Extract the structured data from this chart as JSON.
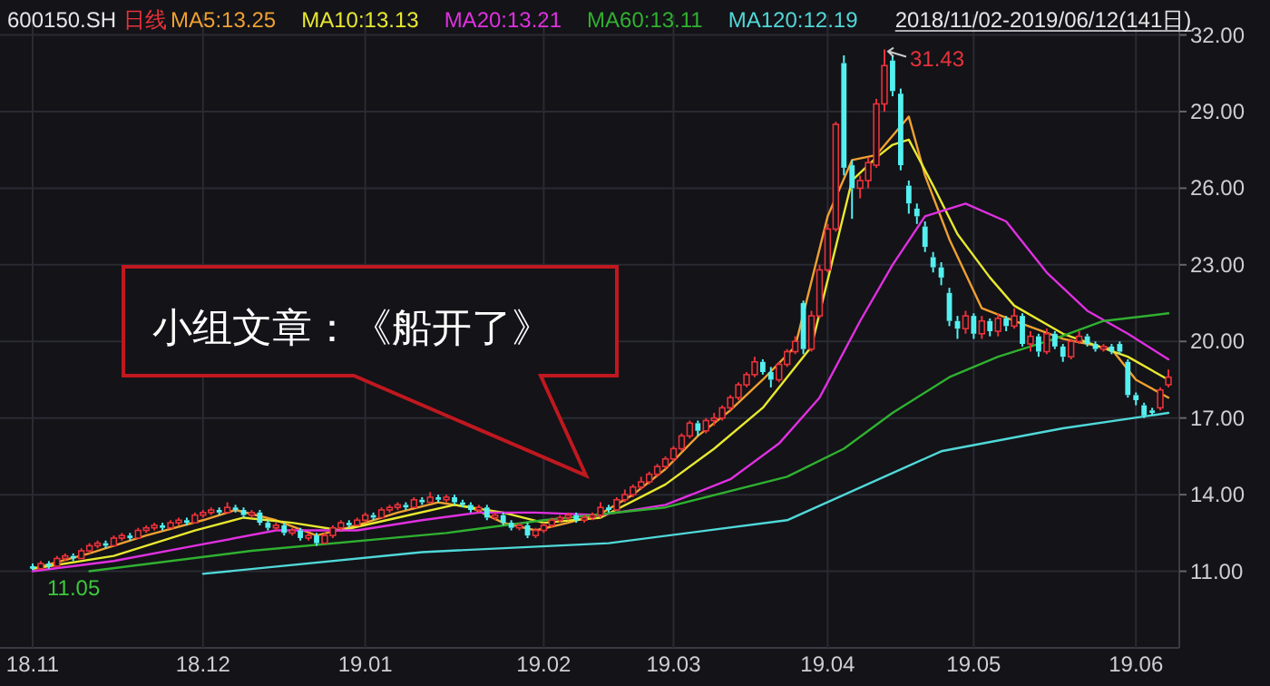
{
  "chart_data": {
    "type": "candlestick",
    "title": "600150.SH",
    "subtitle": "2018/11/02-2019/06/12(141日)",
    "legend": "top",
    "grid": true,
    "categories": [
      "18.11",
      null,
      null,
      null,
      null,
      null,
      null,
      null,
      null,
      null,
      null,
      null,
      null,
      null,
      null,
      null,
      null,
      null,
      null,
      null,
      null,
      "18.12",
      null,
      null,
      null,
      null,
      null,
      null,
      null,
      null,
      null,
      null,
      null,
      null,
      null,
      null,
      null,
      null,
      null,
      null,
      null,
      "19.01",
      null,
      null,
      null,
      null,
      null,
      null,
      null,
      null,
      null,
      null,
      null,
      null,
      null,
      null,
      null,
      null,
      null,
      null,
      null,
      null,
      null,
      "19.02",
      null,
      null,
      null,
      null,
      null,
      null,
      null,
      null,
      null,
      null,
      null,
      null,
      null,
      null,
      null,
      "19.03",
      null,
      null,
      null,
      null,
      null,
      null,
      null,
      null,
      null,
      null,
      null,
      null,
      null,
      null,
      null,
      null,
      null,
      null,
      "19.04",
      null,
      null,
      null,
      null,
      null,
      null,
      null,
      null,
      null,
      null,
      null,
      null,
      null,
      null,
      null,
      null,
      null,
      "19.05",
      null,
      null,
      null,
      null,
      null,
      null,
      null,
      null,
      null,
      null,
      null,
      null,
      null,
      null,
      null,
      null,
      null,
      null,
      null,
      "19.06",
      null,
      null,
      null,
      null
    ],
    "ylim": [
      8.0,
      32.8
    ],
    "yticks": [
      {
        "value": 11,
        "label": "11.00"
      },
      {
        "value": 14,
        "label": "14.00"
      },
      {
        "value": 17,
        "label": "17.00"
      },
      {
        "value": 20,
        "label": "20.00"
      },
      {
        "value": 23,
        "label": "23.00"
      },
      {
        "value": 26,
        "label": "26.00"
      },
      {
        "value": 29,
        "label": "29.00"
      },
      {
        "value": 32,
        "label": "32.00"
      }
    ],
    "ohlc": [
      [
        11.2,
        11.3,
        11.05,
        11.1
      ],
      [
        11.1,
        11.4,
        11.1,
        11.3
      ],
      [
        11.3,
        11.4,
        11.1,
        11.2
      ],
      [
        11.2,
        11.6,
        11.2,
        11.5
      ],
      [
        11.5,
        11.7,
        11.4,
        11.6
      ],
      [
        11.6,
        11.7,
        11.4,
        11.5
      ],
      [
        11.5,
        11.9,
        11.5,
        11.8
      ],
      [
        11.8,
        12.1,
        11.7,
        12.0
      ],
      [
        12.0,
        12.2,
        11.9,
        12.1
      ],
      [
        12.1,
        12.2,
        11.9,
        12.0
      ],
      [
        12.0,
        12.4,
        12.0,
        12.3
      ],
      [
        12.3,
        12.5,
        12.2,
        12.4
      ],
      [
        12.4,
        12.5,
        12.2,
        12.3
      ],
      [
        12.3,
        12.7,
        12.3,
        12.6
      ],
      [
        12.6,
        12.8,
        12.5,
        12.7
      ],
      [
        12.7,
        12.9,
        12.6,
        12.8
      ],
      [
        12.8,
        12.9,
        12.6,
        12.7
      ],
      [
        12.7,
        13.0,
        12.7,
        12.9
      ],
      [
        12.9,
        13.1,
        12.8,
        13.0
      ],
      [
        13.0,
        13.1,
        12.8,
        12.9
      ],
      [
        12.9,
        13.3,
        12.9,
        13.2
      ],
      [
        13.2,
        13.4,
        13.1,
        13.3
      ],
      [
        13.3,
        13.5,
        13.2,
        13.4
      ],
      [
        13.4,
        13.5,
        13.2,
        13.3
      ],
      [
        13.3,
        13.7,
        13.3,
        13.5
      ],
      [
        13.5,
        13.6,
        13.3,
        13.4
      ],
      [
        13.4,
        13.5,
        13.1,
        13.2
      ],
      [
        13.2,
        13.4,
        13.1,
        13.3
      ],
      [
        13.3,
        13.4,
        12.8,
        12.9
      ],
      [
        12.9,
        13.0,
        12.6,
        12.7
      ],
      [
        12.7,
        12.9,
        12.6,
        12.8
      ],
      [
        12.8,
        12.9,
        12.4,
        12.5
      ],
      [
        12.5,
        12.7,
        12.4,
        12.6
      ],
      [
        12.6,
        12.7,
        12.2,
        12.3
      ],
      [
        12.3,
        12.5,
        12.2,
        12.4
      ],
      [
        12.4,
        12.5,
        12.0,
        12.1
      ],
      [
        12.1,
        12.5,
        12.1,
        12.4
      ],
      [
        12.4,
        12.8,
        12.3,
        12.7
      ],
      [
        12.7,
        13.0,
        12.6,
        12.9
      ],
      [
        12.9,
        13.0,
        12.7,
        12.8
      ],
      [
        12.8,
        13.1,
        12.8,
        13.0
      ],
      [
        13.0,
        13.3,
        12.9,
        13.2
      ],
      [
        13.2,
        13.3,
        13.0,
        13.1
      ],
      [
        13.1,
        13.5,
        13.1,
        13.4
      ],
      [
        13.4,
        13.6,
        13.3,
        13.5
      ],
      [
        13.5,
        13.7,
        13.4,
        13.6
      ],
      [
        13.6,
        13.7,
        13.4,
        13.5
      ],
      [
        13.5,
        13.9,
        13.5,
        13.8
      ],
      [
        13.8,
        13.9,
        13.6,
        13.7
      ],
      [
        13.7,
        14.1,
        13.7,
        13.9
      ],
      [
        13.9,
        14.0,
        13.7,
        13.8
      ],
      [
        13.8,
        14.0,
        13.7,
        13.9
      ],
      [
        13.9,
        14.0,
        13.6,
        13.7
      ],
      [
        13.7,
        13.8,
        13.5,
        13.6
      ],
      [
        13.6,
        13.7,
        13.3,
        13.4
      ],
      [
        13.4,
        13.6,
        13.3,
        13.5
      ],
      [
        13.5,
        13.6,
        13.0,
        13.1
      ],
      [
        13.1,
        13.3,
        13.0,
        13.2
      ],
      [
        13.2,
        13.3,
        12.8,
        12.9
      ],
      [
        12.9,
        13.0,
        12.6,
        12.7
      ],
      [
        12.7,
        12.9,
        12.6,
        12.8
      ],
      [
        12.8,
        12.9,
        12.3,
        12.4
      ],
      [
        12.4,
        12.7,
        12.3,
        12.6
      ],
      [
        12.6,
        12.9,
        12.5,
        12.8
      ],
      [
        12.8,
        13.1,
        12.7,
        13.0
      ],
      [
        13.0,
        13.2,
        12.9,
        13.1
      ],
      [
        13.1,
        13.3,
        13.0,
        13.2
      ],
      [
        13.2,
        13.3,
        12.9,
        13.0
      ],
      [
        13.0,
        13.2,
        12.9,
        13.1
      ],
      [
        13.1,
        13.3,
        13.0,
        13.2
      ],
      [
        13.2,
        13.7,
        13.1,
        13.5
      ],
      [
        13.5,
        13.6,
        13.3,
        13.4
      ],
      [
        13.4,
        13.9,
        13.4,
        13.8
      ],
      [
        13.8,
        14.2,
        13.7,
        14.0
      ],
      [
        14.0,
        14.4,
        13.9,
        14.3
      ],
      [
        14.3,
        14.7,
        14.2,
        14.5
      ],
      [
        14.5,
        14.9,
        14.4,
        14.8
      ],
      [
        14.8,
        15.2,
        14.7,
        15.1
      ],
      [
        15.1,
        15.5,
        15.0,
        15.4
      ],
      [
        15.4,
        15.9,
        15.3,
        15.8
      ],
      [
        15.8,
        16.4,
        15.7,
        16.3
      ],
      [
        16.3,
        16.9,
        16.2,
        16.8
      ],
      [
        16.8,
        16.9,
        16.3,
        16.5
      ],
      [
        16.5,
        17.0,
        16.4,
        16.9
      ],
      [
        16.9,
        17.2,
        16.7,
        17.0
      ],
      [
        17.0,
        17.5,
        16.9,
        17.4
      ],
      [
        17.4,
        17.9,
        17.3,
        17.8
      ],
      [
        17.8,
        18.4,
        17.7,
        18.3
      ],
      [
        18.3,
        18.8,
        18.2,
        18.7
      ],
      [
        18.7,
        19.4,
        18.6,
        19.2
      ],
      [
        19.2,
        19.3,
        18.7,
        18.8
      ],
      [
        18.8,
        19.0,
        18.2,
        18.5
      ],
      [
        18.5,
        19.2,
        18.4,
        19.1
      ],
      [
        19.1,
        19.7,
        19.0,
        19.6
      ],
      [
        19.6,
        20.2,
        19.5,
        20.0
      ],
      [
        21.5,
        21.6,
        19.5,
        19.7
      ],
      [
        19.7,
        21.2,
        19.6,
        21.0
      ],
      [
        21.0,
        23.0,
        20.9,
        22.8
      ],
      [
        22.8,
        24.6,
        22.7,
        24.4
      ],
      [
        24.4,
        28.6,
        24.3,
        28.5
      ],
      [
        30.9,
        31.2,
        26.5,
        26.8
      ],
      [
        26.9,
        27.1,
        24.8,
        26.0
      ],
      [
        26.0,
        26.5,
        25.6,
        26.3
      ],
      [
        26.3,
        27.2,
        26.0,
        27.0
      ],
      [
        26.9,
        29.5,
        26.8,
        29.3
      ],
      [
        29.3,
        31.43,
        29.0,
        30.8
      ],
      [
        31.0,
        31.2,
        29.6,
        29.8
      ],
      [
        29.7,
        29.9,
        26.7,
        26.9
      ],
      [
        26.1,
        26.3,
        25.0,
        25.4
      ],
      [
        25.2,
        25.4,
        24.6,
        24.9
      ],
      [
        24.5,
        24.7,
        23.5,
        23.7
      ],
      [
        23.3,
        23.5,
        22.7,
        22.9
      ],
      [
        22.9,
        23.1,
        22.2,
        22.5
      ],
      [
        21.9,
        22.1,
        20.6,
        20.8
      ],
      [
        20.8,
        21.0,
        20.1,
        20.5
      ],
      [
        20.5,
        21.2,
        20.3,
        21.0
      ],
      [
        21.0,
        21.1,
        20.1,
        20.3
      ],
      [
        20.3,
        21.0,
        20.1,
        20.8
      ],
      [
        20.8,
        20.9,
        20.2,
        20.4
      ],
      [
        20.4,
        21.1,
        20.2,
        20.9
      ],
      [
        20.9,
        21.0,
        20.4,
        20.6
      ],
      [
        20.6,
        21.3,
        20.5,
        21.0
      ],
      [
        21.0,
        21.1,
        19.8,
        19.9
      ],
      [
        19.9,
        20.4,
        19.6,
        20.2
      ],
      [
        20.2,
        20.3,
        19.4,
        19.6
      ],
      [
        19.6,
        20.5,
        19.5,
        20.3
      ],
      [
        20.3,
        20.4,
        19.7,
        19.8
      ],
      [
        19.8,
        19.9,
        19.2,
        19.4
      ],
      [
        19.4,
        20.1,
        19.3,
        20.0
      ],
      [
        20.0,
        20.4,
        19.9,
        20.2
      ],
      [
        20.2,
        20.3,
        19.8,
        19.9
      ],
      [
        19.9,
        20.0,
        19.6,
        19.7
      ],
      [
        19.7,
        19.9,
        19.6,
        19.8
      ],
      [
        19.8,
        19.9,
        19.5,
        19.6
      ],
      [
        19.9,
        20.0,
        19.5,
        19.6
      ],
      [
        19.2,
        19.3,
        17.8,
        17.9
      ],
      [
        17.9,
        18.0,
        17.5,
        17.7
      ],
      [
        17.5,
        17.6,
        17.0,
        17.1
      ],
      [
        17.3,
        17.4,
        17.1,
        17.2
      ],
      [
        17.4,
        18.2,
        17.3,
        18.1
      ],
      [
        18.3,
        18.9,
        18.2,
        18.6
      ]
    ],
    "series": [
      {
        "name": "MA5:13.25",
        "type": "line",
        "color": "#f0a030",
        "values": [
          11.1,
          null,
          null,
          null,
          null,
          null,
          null,
          11.7,
          null,
          null,
          null,
          null,
          null,
          null,
          12.4,
          null,
          null,
          null,
          null,
          null,
          null,
          13.0,
          null,
          null,
          null,
          13.4,
          null,
          null,
          null,
          null,
          13.0,
          null,
          null,
          null,
          null,
          12.4,
          null,
          null,
          null,
          null,
          12.8,
          null,
          null,
          null,
          null,
          13.3,
          null,
          null,
          null,
          null,
          13.7,
          null,
          null,
          null,
          13.5,
          null,
          null,
          null,
          12.9,
          null,
          null,
          null,
          12.6,
          null,
          null,
          null,
          12.9,
          null,
          null,
          null,
          13.25,
          null,
          null,
          null,
          14.0,
          null,
          null,
          null,
          15.0,
          null,
          null,
          null,
          16.3,
          null,
          null,
          null,
          17.3,
          null,
          null,
          null,
          18.5,
          null,
          null,
          null,
          19.8,
          null,
          null,
          null,
          24.9,
          null,
          null,
          27.1,
          null,
          null,
          27.3,
          null,
          null,
          null,
          28.8,
          null,
          26.5,
          null,
          null,
          24.0,
          null,
          null,
          null,
          21.3,
          null,
          null,
          null,
          20.8,
          null,
          null,
          null,
          null,
          null,
          20.1,
          null,
          null,
          null,
          null,
          null,
          19.7,
          null,
          null,
          18.5,
          null,
          null,
          null,
          17.8
        ]
      },
      {
        "name": "MA10:13.13",
        "type": "line",
        "color": "#e8e830",
        "values": [
          11.1,
          null,
          null,
          null,
          null,
          null,
          null,
          null,
          null,
          null,
          11.6,
          null,
          null,
          null,
          null,
          null,
          null,
          null,
          null,
          null,
          12.6,
          null,
          null,
          null,
          null,
          null,
          13.1,
          null,
          null,
          null,
          null,
          null,
          12.9,
          null,
          null,
          null,
          null,
          null,
          12.6,
          null,
          null,
          null,
          null,
          null,
          null,
          13.1,
          null,
          null,
          null,
          null,
          null,
          null,
          13.6,
          null,
          null,
          null,
          null,
          null,
          13.3,
          null,
          null,
          null,
          null,
          12.9,
          null,
          null,
          null,
          null,
          null,
          null,
          13.1,
          null,
          null,
          null,
          null,
          null,
          null,
          null,
          14.4,
          null,
          null,
          null,
          null,
          null,
          15.8,
          null,
          null,
          null,
          null,
          null,
          17.4,
          null,
          null,
          null,
          null,
          null,
          19.8,
          null,
          null,
          23.7,
          null,
          26.3,
          null,
          null,
          27.2,
          null,
          27.7,
          null,
          27.9,
          null,
          null,
          26.1,
          null,
          null,
          24.2,
          null,
          null,
          null,
          22.5,
          null,
          null,
          21.4,
          null,
          null,
          null,
          null,
          null,
          20.3,
          null,
          null,
          null,
          null,
          null,
          null,
          null,
          19.4,
          null,
          null,
          null,
          null,
          18.5
        ]
      },
      {
        "name": "MA20:13.21",
        "type": "line",
        "color": "#e030e0",
        "values": [
          11.0,
          null,
          null,
          null,
          null,
          null,
          null,
          null,
          null,
          null,
          11.4,
          null,
          null,
          null,
          null,
          null,
          null,
          null,
          null,
          null,
          12.0,
          null,
          null,
          null,
          null,
          null,
          null,
          null,
          null,
          null,
          12.6,
          null,
          null,
          null,
          null,
          null,
          null,
          null,
          null,
          null,
          12.6,
          null,
          null,
          null,
          null,
          null,
          null,
          null,
          13.0,
          null,
          null,
          null,
          null,
          null,
          null,
          13.3,
          null,
          null,
          null,
          null,
          null,
          null,
          13.3,
          null,
          null,
          null,
          null,
          null,
          null,
          null,
          13.2,
          null,
          null,
          null,
          null,
          null,
          null,
          null,
          13.6,
          null,
          null,
          null,
          null,
          null,
          null,
          null,
          14.6,
          null,
          null,
          null,
          null,
          null,
          16.0,
          null,
          null,
          null,
          null,
          17.8,
          null,
          null,
          null,
          null,
          20.8,
          null,
          null,
          null,
          23.0,
          null,
          null,
          null,
          24.9,
          null,
          null,
          null,
          null,
          25.4,
          null,
          null,
          null,
          null,
          24.7,
          null,
          null,
          null,
          null,
          22.7,
          null,
          null,
          null,
          null,
          21.2,
          null,
          null,
          null,
          null,
          20.3,
          null,
          null,
          null,
          null,
          19.3
        ]
      },
      {
        "name": "MA60:13.11",
        "type": "line",
        "color": "#30b030",
        "values": [
          null,
          null,
          null,
          null,
          null,
          null,
          null,
          11.0,
          null,
          null,
          null,
          null,
          null,
          null,
          null,
          null,
          null,
          null,
          null,
          null,
          null,
          null,
          null,
          null,
          null,
          null,
          null,
          11.8,
          null,
          null,
          null,
          null,
          null,
          null,
          null,
          null,
          null,
          null,
          null,
          null,
          null,
          null,
          null,
          null,
          null,
          null,
          null,
          null,
          null,
          null,
          null,
          12.5,
          null,
          null,
          null,
          null,
          null,
          null,
          null,
          null,
          null,
          null,
          null,
          13.0,
          null,
          null,
          null,
          null,
          null,
          null,
          null,
          null,
          null,
          null,
          null,
          null,
          null,
          null,
          13.5,
          null,
          null,
          null,
          null,
          null,
          null,
          null,
          null,
          null,
          null,
          null,
          null,
          null,
          null,
          14.7,
          null,
          null,
          null,
          null,
          null,
          null,
          15.8,
          null,
          null,
          null,
          null,
          null,
          17.2,
          null,
          null,
          null,
          null,
          null,
          null,
          18.6,
          null,
          null,
          null,
          null,
          null,
          19.4,
          null,
          null,
          null,
          null,
          null,
          null,
          20.1,
          null,
          null,
          null,
          null,
          null,
          20.8,
          null,
          null,
          null,
          null,
          null,
          null,
          null,
          21.1
        ]
      },
      {
        "name": "MA120:12.19",
        "type": "line",
        "color": "#50d8d8",
        "values": [
          null,
          null,
          null,
          null,
          null,
          null,
          null,
          null,
          null,
          null,
          null,
          null,
          null,
          null,
          null,
          null,
          null,
          null,
          null,
          null,
          null,
          10.9,
          null,
          null,
          null,
          null,
          null,
          null,
          null,
          null,
          null,
          null,
          null,
          null,
          null,
          null,
          null,
          null,
          null,
          null,
          null,
          null,
          null,
          null,
          null,
          null,
          null,
          null,
          11.75,
          null,
          null,
          null,
          null,
          null,
          null,
          null,
          null,
          null,
          null,
          null,
          null,
          null,
          null,
          null,
          null,
          null,
          null,
          null,
          null,
          null,
          null,
          12.1,
          null,
          null,
          null,
          null,
          null,
          null,
          null,
          null,
          null,
          null,
          null,
          null,
          null,
          null,
          null,
          null,
          null,
          null,
          null,
          null,
          null,
          13.0,
          null,
          null,
          null,
          null,
          null,
          null,
          null,
          null,
          null,
          null,
          null,
          null,
          null,
          null,
          null,
          null,
          null,
          null,
          15.7,
          null,
          null,
          null,
          null,
          null,
          null,
          null,
          null,
          null,
          null,
          null,
          null,
          null,
          null,
          16.6,
          null,
          null,
          null,
          null,
          null,
          null,
          null,
          null,
          null,
          null,
          null,
          null,
          17.2
        ]
      }
    ],
    "annotations": [
      "日线",
      "11.05",
      "31.43",
      "小组文章：《船开了》"
    ]
  }
}
